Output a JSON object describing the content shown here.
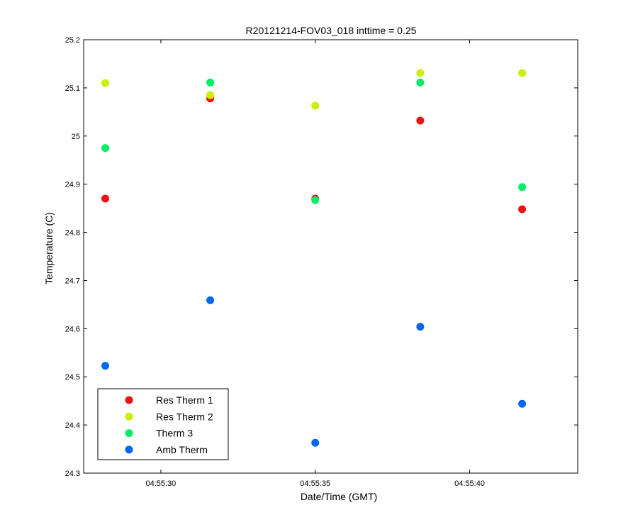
{
  "chart_data": {
    "type": "scatter",
    "title": "R20121214-FOV03_018 inttime = 0.25",
    "xlabel": "Date/Time (GMT)",
    "ylabel": "Temperature (C)",
    "xlim": [
      "04:55:27.5",
      "04:55:43.5"
    ],
    "ylim": [
      24.3,
      25.2
    ],
    "x_ticks": [
      "04:55:30",
      "04:55:35",
      "04:55:40"
    ],
    "y_ticks": [
      "24.3",
      "24.4",
      "24.5",
      "24.6",
      "24.7",
      "24.8",
      "24.9",
      "25",
      "25.1",
      "25.2"
    ],
    "x": [
      "04:55:28.2",
      "04:55:31.6",
      "04:55:35.0",
      "04:55:38.4",
      "04:55:41.7"
    ],
    "grid": false,
    "legend_position": "bottom-left",
    "series": [
      {
        "name": "Res Therm 1",
        "color": "#ee1111",
        "values": [
          24.87,
          25.078,
          24.87,
          25.032,
          24.848
        ]
      },
      {
        "name": "Res Therm 2",
        "color": "#ccee00",
        "values": [
          25.11,
          25.085,
          25.063,
          25.131,
          25.131
        ]
      },
      {
        "name": "Therm 3",
        "color": "#00ee66",
        "values": [
          24.975,
          25.111,
          24.867,
          25.111,
          24.894
        ]
      },
      {
        "name": "Amb Therm",
        "color": "#0066ee",
        "values": [
          24.523,
          24.659,
          24.363,
          24.604,
          24.444
        ]
      }
    ]
  }
}
